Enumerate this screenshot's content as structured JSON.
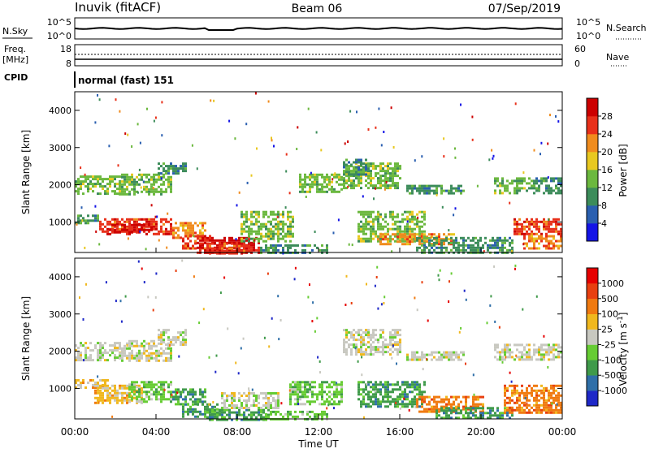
{
  "header": {
    "site": "Inuvik (fitACF)",
    "beam": "Beam 06",
    "date": "07/Sep/2019"
  },
  "noise_panel": {
    "left_label": "N.Sky",
    "right_label": "N.Search",
    "left_ticks": [
      "10^5",
      "10^0"
    ],
    "right_ticks": [
      "10^5",
      "10^0"
    ]
  },
  "freq_panel": {
    "left_label_1": "Freq.",
    "left_label_2": "[MHz]",
    "right_label": "Nave",
    "left_ticks": [
      "18",
      "8"
    ],
    "right_ticks": [
      "60",
      "0"
    ]
  },
  "cpid_panel": {
    "label": "CPID",
    "mode": "normal (fast) 151"
  },
  "chart_data": [
    {
      "type": "heatmap",
      "quantity": "Power",
      "ylabel": "Slant Range [km]",
      "yticks": [
        1000,
        2000,
        3000,
        4000
      ],
      "ylim": [
        180,
        4500
      ],
      "colorbar_label": "Power [dB]",
      "colorbar_ticks": [
        "4",
        "8",
        "12",
        "16",
        "20",
        "24",
        "28"
      ],
      "colors": [
        "#1414e6",
        "#2a5fb0",
        "#3c8c5a",
        "#6bb83e",
        "#e8c820",
        "#f08c1e",
        "#e8301a",
        "#cc0000"
      ]
    },
    {
      "type": "heatmap",
      "quantity": "Velocity",
      "ylabel": "Slant Range [km]",
      "yticks": [
        1000,
        2000,
        3000,
        4000
      ],
      "ylim": [
        180,
        4500
      ],
      "colorbar_label": "Velocity [m s",
      "colorbar_label_sup": "-1",
      "colorbar_label_end": "]",
      "colorbar_ticks": [
        "1000",
        "500",
        "100",
        "25",
        "-25",
        "-100",
        "-500",
        "-1000"
      ],
      "colors": [
        "#1e28c8",
        "#2f6fa8",
        "#3f9a4a",
        "#66cc33",
        "#c8c8c0",
        "#f0b81e",
        "#f07a10",
        "#e84010",
        "#e60000"
      ]
    }
  ],
  "xaxis": {
    "label": "Time UT",
    "ticks": [
      "00:00",
      "04:00",
      "08:00",
      "12:00",
      "16:00",
      "20:00",
      "00:00"
    ]
  }
}
